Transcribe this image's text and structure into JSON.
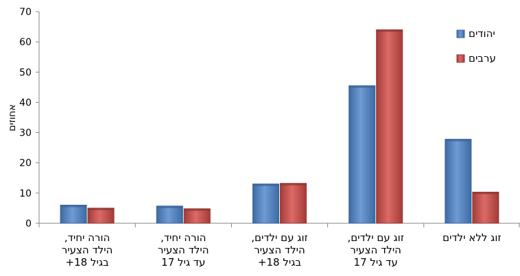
{
  "chart_data": {
    "type": "bar",
    "ylabel": "אחוזים",
    "ylim": [
      0,
      70
    ],
    "yticks": [
      0,
      10,
      20,
      30,
      40,
      50,
      60,
      70
    ],
    "legend_position": "top-right",
    "categories": [
      [
        "הורה יחיד,",
        "הילד הצעיר",
        "בגיל 18+"
      ],
      [
        "הורה יחיד,",
        "הילד הצעיר",
        "עד גיל 17"
      ],
      [
        "זוג עם ילדים,",
        "הילד הצעיר",
        "בגיל 18+"
      ],
      [
        "זוג עם ילדים,",
        "הילד הצעיר",
        "עד גיל 17"
      ],
      [
        "זוג ללא ילדים"
      ]
    ],
    "series": [
      {
        "name": "יהודים",
        "values": [
          6,
          5.7,
          13,
          45.5,
          27.8
        ],
        "color": "#4f81bd",
        "dark": "#3a6496"
      },
      {
        "name": "ערבים",
        "values": [
          5,
          4.8,
          13.2,
          64,
          10.3
        ],
        "color": "#c0504d",
        "dark": "#8f3633"
      }
    ]
  }
}
